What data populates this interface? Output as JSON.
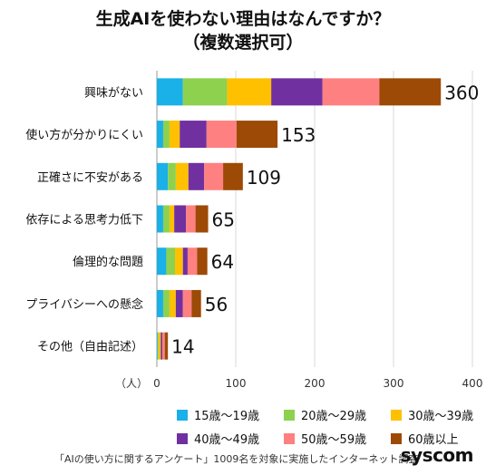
{
  "title": "生成AIを使わない理由はなんですか？",
  "subtitle": "（複数選択可）",
  "unit_label": "（人）",
  "footnote": "「AIの使い方に関するアンケート」1009名を対象に実施したインターネット調査",
  "brand": "syscom",
  "chart_data": {
    "type": "bar",
    "orientation": "horizontal",
    "stacked": true,
    "categories": [
      "興味がない",
      "使い方が分かりにくい",
      "正確さに不安がある",
      "依存による思考力低下",
      "倫理的な問題",
      "プライバシーへの懸念",
      "その他（自由記述）"
    ],
    "totals": [
      360,
      153,
      109,
      65,
      64,
      56,
      14
    ],
    "series": [
      {
        "name": "15歳〜19歳",
        "color": "#1ab0e8",
        "values": [
          33,
          8,
          14,
          8,
          12,
          8,
          1
        ]
      },
      {
        "name": "20歳〜29歳",
        "color": "#8dd14f",
        "values": [
          56,
          8,
          10,
          8,
          11,
          8,
          1
        ]
      },
      {
        "name": "30歳〜39歳",
        "color": "#ffc000",
        "values": [
          56,
          13,
          16,
          6,
          10,
          8,
          3
        ]
      },
      {
        "name": "40歳〜49歳",
        "color": "#7030a0",
        "values": [
          65,
          34,
          20,
          15,
          6,
          9,
          2
        ]
      },
      {
        "name": "50歳〜59歳",
        "color": "#ff8080",
        "values": [
          72,
          38,
          24,
          12,
          12,
          11,
          3
        ]
      },
      {
        "name": "60歳以上",
        "color": "#9c4a06",
        "values": [
          78,
          52,
          25,
          16,
          13,
          12,
          4
        ]
      }
    ],
    "x_ticks": [
      0,
      100,
      200,
      300,
      400
    ],
    "xlim": [
      0,
      400
    ],
    "grid": true,
    "legend_position": "bottom"
  }
}
